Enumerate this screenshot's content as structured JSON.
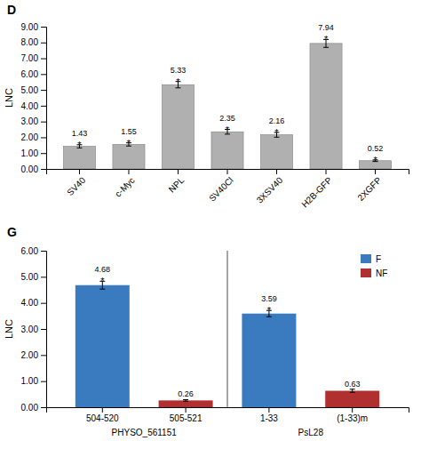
{
  "chart_data": [
    {
      "type": "bar",
      "title": "D",
      "categories": [
        "SV40",
        "c-Myc",
        "NPL",
        "SV40Cl",
        "3XSV40",
        "H2B-GFP",
        "2XGFP"
      ],
      "values": [
        1.43,
        1.55,
        5.33,
        2.35,
        2.16,
        7.94,
        0.52
      ],
      "errors": [
        0.1,
        0.1,
        0.2,
        0.15,
        0.15,
        0.25,
        0.05
      ],
      "color": "#b0b0b0",
      "ylabel": "LNC",
      "ylim": [
        0,
        9.0
      ],
      "yticks": [
        {
          "value": 0,
          "label": "0.00"
        },
        {
          "value": 1.0,
          "label": "1.00"
        },
        {
          "value": 2.0,
          "label": "2.00"
        },
        {
          "value": 3.0,
          "label": "3.00"
        },
        {
          "value": 4.0,
          "label": "4.00"
        },
        {
          "value": 5.0,
          "label": "5.00"
        },
        {
          "value": 6.0,
          "label": "6.00"
        },
        {
          "value": 7.0,
          "label": "7.00"
        },
        {
          "value": 8.0,
          "label": "8.00"
        },
        {
          "value": 9.0,
          "label": "9.00"
        }
      ],
      "data_labels": true,
      "annotations": [
        {
          "text": "*",
          "category": "SV40"
        },
        {
          "text": "*",
          "category": "c-Myc"
        },
        {
          "text": "*",
          "category": "NPL"
        },
        {
          "text": "*",
          "category": "SV40Cl"
        },
        {
          "text": "*",
          "category": "3XSV40"
        },
        {
          "text": "*",
          "category": "H2B-GFP"
        },
        {
          "text": "*",
          "category": "2XGFP"
        }
      ]
    },
    {
      "type": "bar",
      "title": "G",
      "categories": [
        "504-520",
        "505-521",
        "1-33",
        "(1-33)m"
      ],
      "series": [
        {
          "name": "F",
          "color": "#3a7abf",
          "values": [
            4.68,
            null,
            3.59,
            null
          ],
          "errors": [
            0.15,
            null,
            0.12,
            null
          ]
        },
        {
          "name": "NF",
          "color": "#b03030",
          "values": [
            null,
            0.26,
            null,
            0.63
          ],
          "errors": [
            null,
            0.03,
            null,
            0.06
          ]
        }
      ],
      "ylabel": "LNC",
      "ylim": [
        0,
        6.0
      ],
      "yticks": [
        {
          "value": 0,
          "label": "0.00"
        },
        {
          "value": 1.0,
          "label": "1.00"
        },
        {
          "value": 2.0,
          "label": "2.00"
        },
        {
          "value": 3.0,
          "label": "3.00"
        },
        {
          "value": 4.0,
          "label": "4.00"
        },
        {
          "value": 5.0,
          "label": "5.00"
        },
        {
          "value": 6.0,
          "label": "6.00"
        }
      ],
      "data_labels": true,
      "legend": "upper right",
      "annotations": [
        {
          "text": "*",
          "category": "504-520"
        },
        {
          "text": "*",
          "category": "1-33"
        },
        {
          "text": "PHYSO_561151",
          "categories": [
            "504-520",
            "505-521"
          ]
        },
        {
          "text": "PsL28",
          "categories": [
            "1-33",
            "(1-33)m"
          ]
        }
      ]
    }
  ]
}
